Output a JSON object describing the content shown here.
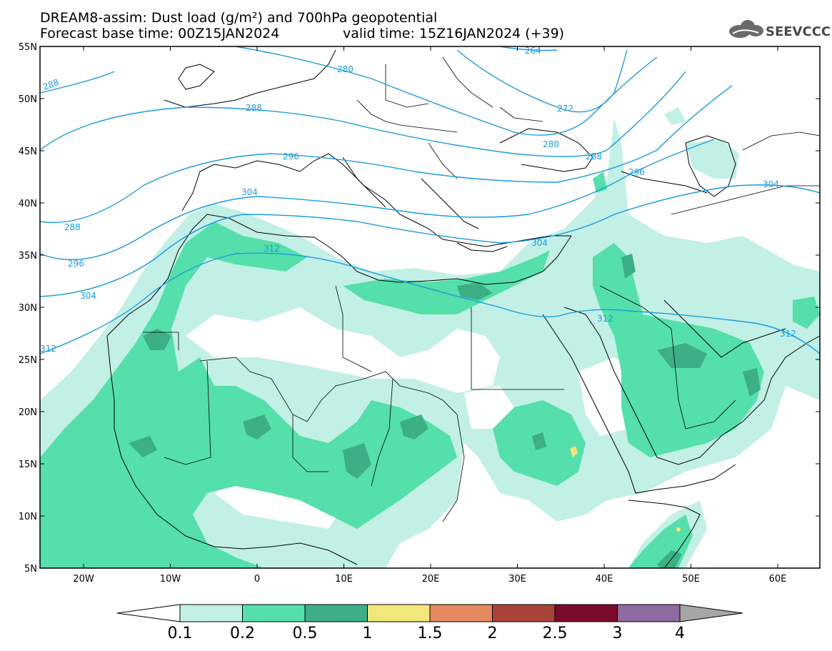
{
  "title": {
    "line1": "DREAM8-assim: Dust load (g/m²) and 700hPa geopotential",
    "line2_base": "Forecast base time: 00Z15JAN2024",
    "line2_valid": "valid time: 15Z16JAN2024 (+39)"
  },
  "logo": {
    "text": "SEEVCCC",
    "icon": "cloud-icon"
  },
  "axes": {
    "lon_ticks": [
      "20W",
      "10W",
      "0",
      "10E",
      "20E",
      "30E",
      "40E",
      "50E",
      "60E"
    ],
    "lat_ticks": [
      "55N",
      "50N",
      "45N",
      "40N",
      "35N",
      "30N",
      "25N",
      "20N",
      "15N",
      "10N",
      "5N"
    ]
  },
  "colorbar": {
    "labels": [
      "0.1",
      "0.2",
      "0.5",
      "1",
      "1.5",
      "2",
      "2.5",
      "3",
      "4"
    ],
    "colors": [
      "#c2f0e6",
      "#55dfaa",
      "#3daf84",
      "#f2e77a",
      "#e48a5e",
      "#a8443a",
      "#7c0b2b",
      "#8d6a9f",
      "#a6a6a6"
    ]
  },
  "contour_labels": [
    "264",
    "272",
    "280",
    "288",
    "296",
    "304",
    "312"
  ],
  "contour_color": "#1a9be0",
  "dust_colors": {
    "light": "#c2f0e6",
    "medium": "#55dfaa",
    "dark": "#3daf84",
    "high": "#f2e77a"
  }
}
